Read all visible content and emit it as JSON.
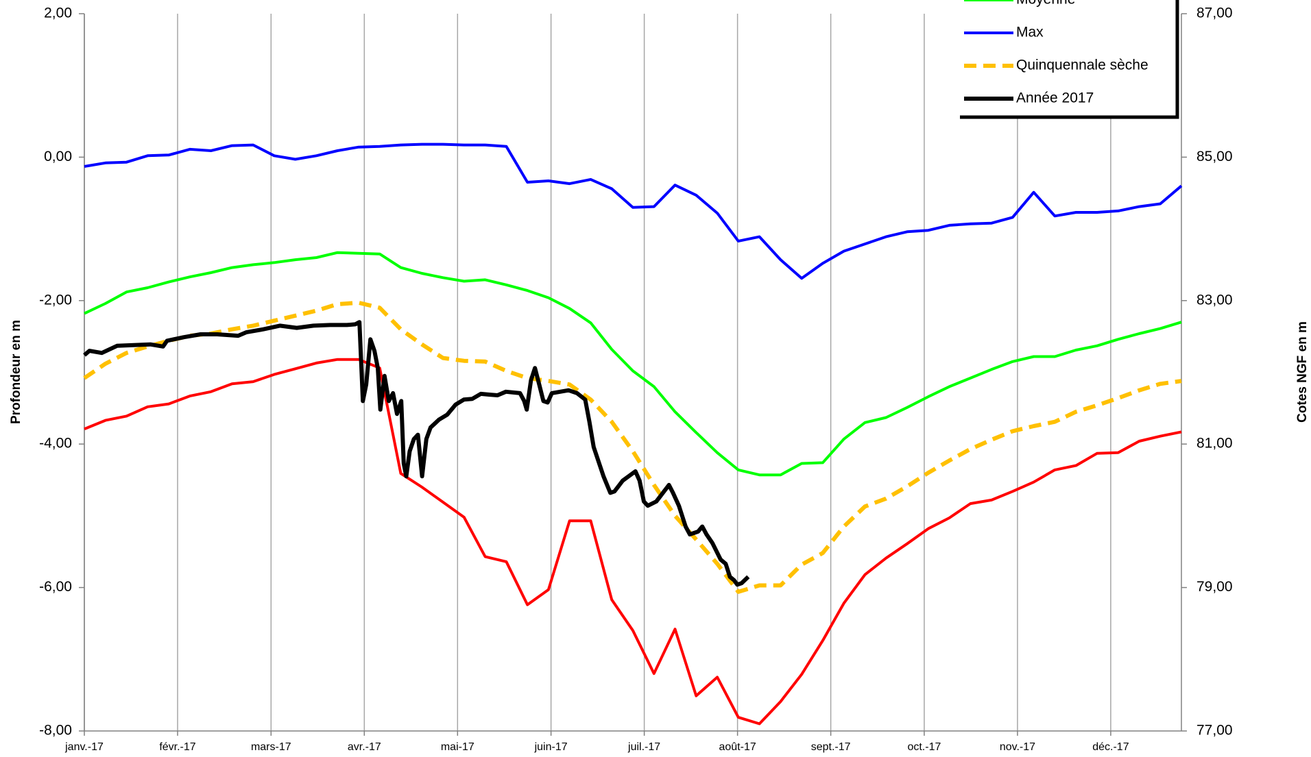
{
  "chart_data": {
    "type": "line",
    "ylabel": "Profondeur en m",
    "y2label": "Cotes NGF en m",
    "xlim": [
      0,
      52
    ],
    "xticks": [
      {
        "value": 0,
        "label": "janv.-17"
      },
      {
        "value": 4.42,
        "label": "févr.-17"
      },
      {
        "value": 8.85,
        "label": "mars-17"
      },
      {
        "value": 13.27,
        "label": "avr.-17"
      },
      {
        "value": 17.69,
        "label": "mai-17"
      },
      {
        "value": 22.12,
        "label": "juin-17"
      },
      {
        "value": 26.54,
        "label": "juil.-17"
      },
      {
        "value": 30.96,
        "label": "août-17"
      },
      {
        "value": 35.38,
        "label": "sept.-17"
      },
      {
        "value": 39.81,
        "label": "oct.-17"
      },
      {
        "value": 44.23,
        "label": "nov.-17"
      },
      {
        "value": 48.65,
        "label": "déc.-17"
      }
    ],
    "ylim": [
      -8,
      2
    ],
    "yticks": [
      {
        "value": -8,
        "label": "-8,00"
      },
      {
        "value": -6,
        "label": "-6,00"
      },
      {
        "value": -4,
        "label": "-4,00"
      },
      {
        "value": -2,
        "label": "-2,00"
      },
      {
        "value": 0,
        "label": "0,00"
      },
      {
        "value": 2,
        "label": "2,00"
      }
    ],
    "y2lim": [
      77,
      87
    ],
    "y2ticks": [
      {
        "value": 77,
        "label": "77,00"
      },
      {
        "value": 79,
        "label": "79,00"
      },
      {
        "value": 81,
        "label": "81,00"
      },
      {
        "value": 83,
        "label": "83,00"
      },
      {
        "value": 85,
        "label": "85,00"
      },
      {
        "value": 87,
        "label": "87,00"
      }
    ],
    "xgrid": true,
    "legend": "upper right",
    "x": [
      0,
      1,
      2,
      3,
      4,
      5,
      6,
      7,
      8,
      9,
      10,
      11,
      12,
      13,
      14,
      15,
      16,
      17,
      18,
      19,
      20,
      21,
      22,
      23,
      24,
      25,
      26,
      27,
      28,
      29,
      30,
      31,
      32,
      33,
      34,
      35,
      36,
      37,
      38,
      39,
      40,
      41,
      42,
      43,
      44,
      45,
      46,
      47,
      48,
      49,
      50,
      51,
      52
    ],
    "series": [
      {
        "color": "#ff0000",
        "width": 4,
        "values": [
          -3.79,
          -3.67,
          -3.61,
          -3.48,
          -3.44,
          -3.33,
          -3.27,
          -3.16,
          -3.13,
          -3.03,
          -2.95,
          -2.87,
          -2.82,
          -2.82,
          -2.94,
          -4.41,
          -4.6,
          -4.81,
          -5.02,
          -5.57,
          -5.64,
          -6.24,
          -6.03,
          -5.07,
          -5.07,
          -6.17,
          -6.6,
          -7.2,
          -6.58,
          -7.51,
          -7.25,
          -7.81,
          -7.9,
          -7.59,
          -7.21,
          -6.74,
          -6.22,
          -5.82,
          -5.59,
          -5.39,
          -5.18,
          -5.03,
          -4.83,
          -4.78,
          -4.66,
          -4.53,
          -4.36,
          -4.3,
          -4.13,
          -4.12,
          -3.96,
          -3.89,
          -3.83
        ]
      },
      {
        "name": "Moyenne",
        "color": "#00ff00",
        "width": 4,
        "values": [
          -2.18,
          -2.04,
          -1.88,
          -1.82,
          -1.74,
          -1.67,
          -1.61,
          -1.54,
          -1.5,
          -1.47,
          -1.43,
          -1.4,
          -1.33,
          -1.34,
          -1.35,
          -1.54,
          -1.62,
          -1.68,
          -1.73,
          -1.71,
          -1.78,
          -1.86,
          -1.96,
          -2.11,
          -2.31,
          -2.68,
          -2.98,
          -3.2,
          -3.55,
          -3.84,
          -4.12,
          -4.36,
          -4.43,
          -4.43,
          -4.27,
          -4.26,
          -3.93,
          -3.7,
          -3.63,
          -3.49,
          -3.34,
          -3.2,
          -3.08,
          -2.96,
          -2.85,
          -2.78,
          -2.78,
          -2.69,
          -2.63,
          -2.54,
          -2.46,
          -2.39,
          -2.3
        ]
      },
      {
        "name": "Max",
        "color": "#0000ff",
        "width": 4,
        "values": [
          -0.13,
          -0.08,
          -0.07,
          0.02,
          0.03,
          0.11,
          0.09,
          0.16,
          0.17,
          0.02,
          -0.03,
          0.02,
          0.09,
          0.14,
          0.15,
          0.17,
          0.18,
          0.18,
          0.17,
          0.17,
          0.15,
          -0.35,
          -0.33,
          -0.37,
          -0.31,
          -0.44,
          -0.7,
          -0.69,
          -0.39,
          -0.53,
          -0.78,
          -1.17,
          -1.11,
          -1.43,
          -1.69,
          -1.48,
          -1.31,
          -1.21,
          -1.11,
          -1.04,
          -1.02,
          -0.95,
          -0.93,
          -0.92,
          -0.84,
          -0.49,
          -0.82,
          -0.77,
          -0.77,
          -0.75,
          -0.69,
          -0.65,
          -0.4
        ]
      },
      {
        "name": "Quinquennale sèche",
        "color": "#ffc000",
        "width": 6,
        "dashed": true,
        "values": [
          -3.08,
          -2.88,
          -2.73,
          -2.64,
          -2.56,
          -2.49,
          -2.46,
          -2.4,
          -2.35,
          -2.28,
          -2.21,
          -2.14,
          -2.05,
          -2.03,
          -2.1,
          -2.4,
          -2.61,
          -2.8,
          -2.84,
          -2.85,
          -2.98,
          -3.08,
          -3.12,
          -3.17,
          -3.38,
          -3.69,
          -4.1,
          -4.57,
          -5.0,
          -5.33,
          -5.67,
          -6.06,
          -5.97,
          -5.97,
          -5.68,
          -5.52,
          -5.15,
          -4.87,
          -4.76,
          -4.59,
          -4.4,
          -4.23,
          -4.07,
          -3.94,
          -3.82,
          -3.75,
          -3.69,
          -3.55,
          -3.46,
          -3.36,
          -3.25,
          -3.16,
          -3.12
        ]
      },
      {
        "name": "Année 2017",
        "color": "#000000",
        "width": 6,
        "x": [
          0,
          0.24,
          0.83,
          1.55,
          2.34,
          3.13,
          3.73,
          3.92,
          4.72,
          5.51,
          6.3,
          7.29,
          7.69,
          8.48,
          9.27,
          10.07,
          10.86,
          11.65,
          12.45,
          12.84,
          13.04,
          13.2,
          13.36,
          13.56,
          13.75,
          13.91,
          14.03,
          14.23,
          14.43,
          14.63,
          14.82,
          15.02,
          15.14,
          15.26,
          15.42,
          15.62,
          15.81,
          16.01,
          16.21,
          16.41,
          16.81,
          17.2,
          17.6,
          17.99,
          18.39,
          18.79,
          19.18,
          19.58,
          19.98,
          20.65,
          20.85,
          20.97,
          21.17,
          21.36,
          21.56,
          21.76,
          21.96,
          22.16,
          22.95,
          23.35,
          23.74,
          23.94,
          24.14,
          24.61,
          24.93,
          25.13,
          25.52,
          26.12,
          26.32,
          26.52,
          26.71,
          27.11,
          27.71,
          27.9,
          28.18,
          28.5,
          28.7,
          29.09,
          29.29,
          29.49,
          29.77,
          30.16,
          30.4,
          30.6,
          30.8,
          30.95,
          31.15,
          31.47
        ],
        "values": [
          -2.76,
          -2.7,
          -2.73,
          -2.63,
          -2.62,
          -2.61,
          -2.64,
          -2.56,
          -2.51,
          -2.47,
          -2.47,
          -2.49,
          -2.44,
          -2.4,
          -2.35,
          -2.38,
          -2.35,
          -2.34,
          -2.34,
          -2.33,
          -2.3,
          -3.4,
          -3.17,
          -2.54,
          -2.7,
          -2.94,
          -3.52,
          -3.05,
          -3.4,
          -3.29,
          -3.58,
          -3.4,
          -4.27,
          -4.45,
          -4.1,
          -3.93,
          -3.87,
          -4.45,
          -3.93,
          -3.77,
          -3.66,
          -3.59,
          -3.45,
          -3.38,
          -3.37,
          -3.3,
          -3.31,
          -3.32,
          -3.27,
          -3.29,
          -3.4,
          -3.52,
          -3.11,
          -2.94,
          -3.17,
          -3.4,
          -3.42,
          -3.29,
          -3.25,
          -3.29,
          -3.38,
          -3.69,
          -4.04,
          -4.45,
          -4.68,
          -4.66,
          -4.51,
          -4.38,
          -4.51,
          -4.8,
          -4.86,
          -4.8,
          -4.57,
          -4.68,
          -4.86,
          -5.15,
          -5.26,
          -5.22,
          -5.15,
          -5.26,
          -5.38,
          -5.61,
          -5.67,
          -5.85,
          -5.9,
          -5.96,
          -5.94,
          -5.85
        ]
      }
    ]
  }
}
